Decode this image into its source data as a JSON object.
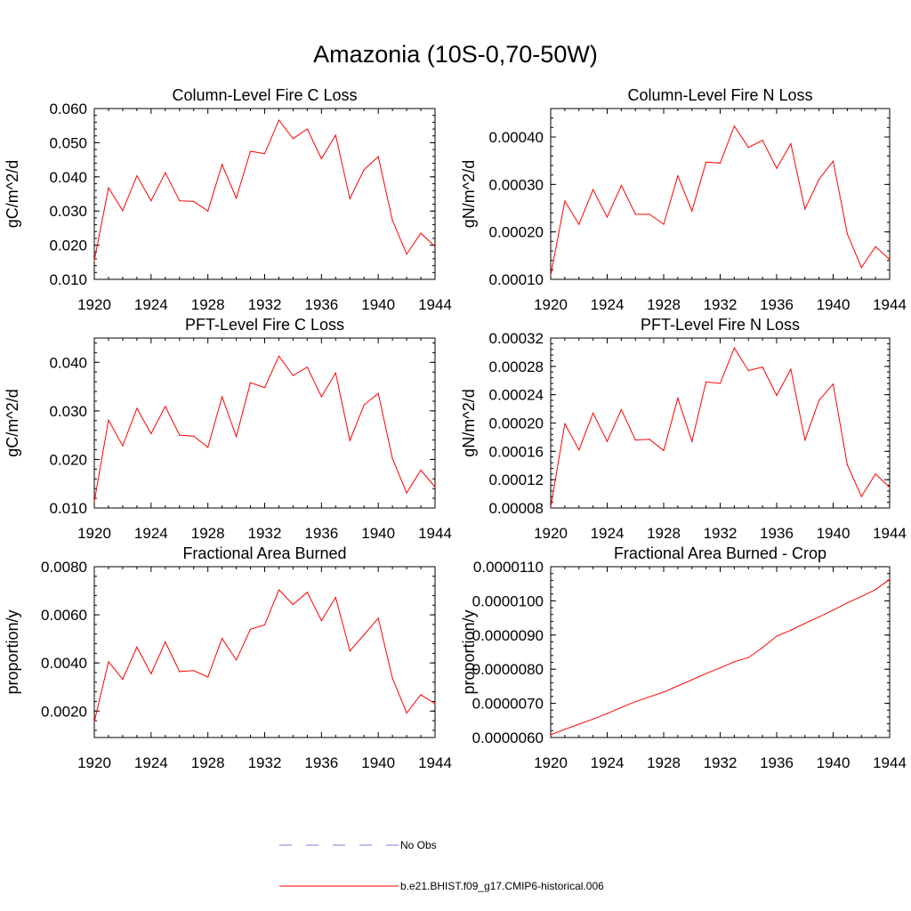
{
  "figure_title": "Amazonia (10S-0,70-50W)",
  "legend": {
    "entries": [
      {
        "label": "No Obs",
        "color": "#7f7fd8",
        "dash": "dashed"
      },
      {
        "label": "b.e21.BHIST.f09_g17.CMIP6-historical.006",
        "color": "#ff0000",
        "dash": "solid"
      }
    ]
  },
  "chart_data": [
    {
      "type": "line",
      "title": "Column-Level Fire C Loss",
      "ylabel": "gC/m^2/d",
      "xlim": [
        1920,
        1944
      ],
      "ylim": [
        0.01,
        0.06
      ],
      "x_ticks": [
        "1920",
        "1924",
        "1928",
        "1932",
        "1936",
        "1940",
        "1944"
      ],
      "y_ticks": [
        "0.010",
        "0.020",
        "0.030",
        "0.040",
        "0.050",
        "0.060"
      ],
      "x": [
        1920,
        1921,
        1922,
        1923,
        1924,
        1925,
        1926,
        1927,
        1928,
        1929,
        1930,
        1931,
        1932,
        1933,
        1934,
        1935,
        1936,
        1937,
        1938,
        1939,
        1940,
        1941,
        1942,
        1943,
        1944
      ],
      "series": [
        {
          "name": "b.e21.BHIST.f09_g17.CMIP6-historical.006",
          "color": "#ff0000",
          "values": [
            0.0155,
            0.0368,
            0.0301,
            0.0403,
            0.033,
            0.0412,
            0.033,
            0.0328,
            0.03,
            0.0436,
            0.0338,
            0.0475,
            0.0468,
            0.0566,
            0.0512,
            0.054,
            0.0453,
            0.0522,
            0.0336,
            0.0421,
            0.0459,
            0.0273,
            0.0174,
            0.0235,
            0.0196
          ]
        }
      ]
    },
    {
      "type": "line",
      "title": "Column-Level Fire N Loss",
      "ylabel": "gN/m^2/d",
      "xlim": [
        1920,
        1944
      ],
      "ylim": [
        0.0001,
        0.00046
      ],
      "x_ticks": [
        "1920",
        "1924",
        "1928",
        "1932",
        "1936",
        "1940",
        "1944"
      ],
      "y_ticks": [
        "0.00010",
        "0.00020",
        "0.00030",
        "0.00040"
      ],
      "y_tick_values": [
        0.0001,
        0.0002,
        0.0003,
        0.0004
      ],
      "x": [
        1920,
        1921,
        1922,
        1923,
        1924,
        1925,
        1926,
        1927,
        1928,
        1929,
        1930,
        1931,
        1932,
        1933,
        1934,
        1935,
        1936,
        1937,
        1938,
        1939,
        1940,
        1941,
        1942,
        1943,
        1944
      ],
      "series": [
        {
          "name": "b.e21.BHIST.f09_g17.CMIP6-historical.006",
          "color": "#ff0000",
          "values": [
            0.000108,
            0.000265,
            0.000216,
            0.000289,
            0.000231,
            0.000298,
            0.000237,
            0.000237,
            0.000216,
            0.000318,
            0.000244,
            0.000347,
            0.000345,
            0.000423,
            0.000378,
            0.000393,
            0.000334,
            0.000386,
            0.000248,
            0.000311,
            0.000349,
            0.000196,
            0.000125,
            0.000169,
            0.000142
          ]
        }
      ]
    },
    {
      "type": "line",
      "title": "PFT-Level Fire C Loss",
      "ylabel": "gC/m^2/d",
      "xlim": [
        1920,
        1944
      ],
      "ylim": [
        0.01,
        0.045
      ],
      "x_ticks": [
        "1920",
        "1924",
        "1928",
        "1932",
        "1936",
        "1940",
        "1944"
      ],
      "y_ticks": [
        "0.010",
        "0.020",
        "0.030",
        "0.040"
      ],
      "y_tick_values": [
        0.01,
        0.02,
        0.03,
        0.04
      ],
      "x": [
        1920,
        1921,
        1922,
        1923,
        1924,
        1925,
        1926,
        1927,
        1928,
        1929,
        1930,
        1931,
        1932,
        1933,
        1934,
        1935,
        1936,
        1937,
        1938,
        1939,
        1940,
        1941,
        1942,
        1943,
        1944
      ],
      "series": [
        {
          "name": "b.e21.BHIST.f09_g17.CMIP6-historical.006",
          "color": "#ff0000",
          "values": [
            0.0113,
            0.0281,
            0.0228,
            0.0305,
            0.0253,
            0.0309,
            0.025,
            0.0248,
            0.0225,
            0.0329,
            0.0247,
            0.0358,
            0.0348,
            0.0413,
            0.0373,
            0.039,
            0.0329,
            0.0378,
            0.0239,
            0.0312,
            0.0336,
            0.0202,
            0.0131,
            0.0178,
            0.0143
          ]
        }
      ]
    },
    {
      "type": "line",
      "title": "PFT-Level Fire N Loss",
      "ylabel": "gN/m^2/d",
      "xlim": [
        1920,
        1944
      ],
      "ylim": [
        8e-05,
        0.00032
      ],
      "x_ticks": [
        "1920",
        "1924",
        "1928",
        "1932",
        "1936",
        "1940",
        "1944"
      ],
      "y_ticks": [
        "0.00008",
        "0.00012",
        "0.00016",
        "0.00020",
        "0.00024",
        "0.00028",
        "0.00032"
      ],
      "y_tick_values": [
        8e-05,
        0.00012,
        0.00016,
        0.0002,
        0.00024,
        0.00028,
        0.00032
      ],
      "x": [
        1920,
        1921,
        1922,
        1923,
        1924,
        1925,
        1926,
        1927,
        1928,
        1929,
        1930,
        1931,
        1932,
        1933,
        1934,
        1935,
        1936,
        1937,
        1938,
        1939,
        1940,
        1941,
        1942,
        1943,
        1944
      ],
      "series": [
        {
          "name": "b.e21.BHIST.f09_g17.CMIP6-historical.006",
          "color": "#ff0000",
          "values": [
            8.1e-05,
            0.000199,
            0.000162,
            0.000214,
            0.000174,
            0.000219,
            0.000176,
            0.000177,
            0.000161,
            0.000235,
            0.000174,
            0.000258,
            0.000256,
            0.000306,
            0.000274,
            0.000279,
            0.000239,
            0.000276,
            0.000176,
            0.000232,
            0.000255,
            0.000141,
            9.62e-05,
            0.000128,
            0.000109
          ]
        }
      ]
    },
    {
      "type": "line",
      "title": "Fractional Area Burned",
      "ylabel": "proportion/y",
      "xlim": [
        1920,
        1944
      ],
      "ylim": [
        0.0009,
        0.008
      ],
      "x_ticks": [
        "1920",
        "1924",
        "1928",
        "1932",
        "1936",
        "1940",
        "1944"
      ],
      "y_ticks": [
        "0.0020",
        "0.0040",
        "0.0060",
        "0.0080"
      ],
      "y_tick_values": [
        0.002,
        0.004,
        0.006,
        0.008
      ],
      "x": [
        1920,
        1921,
        1922,
        1923,
        1924,
        1925,
        1926,
        1927,
        1928,
        1929,
        1930,
        1931,
        1932,
        1933,
        1934,
        1935,
        1936,
        1937,
        1938,
        1939,
        1940,
        1941,
        1942,
        1943,
        1944
      ],
      "series": [
        {
          "name": "b.e21.BHIST.f09_g17.CMIP6-historical.006",
          "color": "#ff0000",
          "values": [
            0.00155,
            0.00405,
            0.00332,
            0.00466,
            0.00355,
            0.00487,
            0.00364,
            0.00368,
            0.00342,
            0.00502,
            0.00412,
            0.0054,
            0.00558,
            0.00704,
            0.00643,
            0.00694,
            0.00576,
            0.00672,
            0.0045,
            0.00517,
            0.00586,
            0.00337,
            0.00192,
            0.00268,
            0.0023
          ]
        }
      ]
    },
    {
      "type": "line",
      "title": "Fractional Area Burned - Crop",
      "ylabel": "proportion/y",
      "xlim": [
        1920,
        1944
      ],
      "ylim": [
        6e-06,
        1.1e-05
      ],
      "x_ticks": [
        "1920",
        "1924",
        "1928",
        "1932",
        "1936",
        "1940",
        "1944"
      ],
      "y_ticks": [
        "0.0000060",
        "0.0000070",
        "0.0000080",
        "0.0000090",
        "0.0000100",
        "0.0000110"
      ],
      "y_tick_values": [
        6e-06,
        7e-06,
        8e-06,
        9e-06,
        1e-05,
        1.1e-05
      ],
      "x": [
        1920,
        1921,
        1922,
        1923,
        1924,
        1925,
        1926,
        1927,
        1928,
        1929,
        1930,
        1931,
        1932,
        1933,
        1934,
        1935,
        1936,
        1937,
        1938,
        1939,
        1940,
        1941,
        1942,
        1943,
        1944
      ],
      "series": [
        {
          "name": "b.e21.BHIST.f09_g17.CMIP6-historical.006",
          "color": "#ff0000",
          "values": [
            6.08e-06,
            6.24e-06,
            6.39e-06,
            6.54e-06,
            6.7e-06,
            6.88e-06,
            7.05e-06,
            7.19e-06,
            7.33e-06,
            7.51e-06,
            7.69e-06,
            7.87e-06,
            8.04e-06,
            8.22e-06,
            8.34e-06,
            8.63e-06,
            8.97e-06,
            9.14e-06,
            9.34e-06,
            9.53e-06,
            9.73e-06,
            9.94e-06,
            1.013e-05,
            1.033e-05,
            1.063e-05
          ]
        }
      ]
    }
  ]
}
